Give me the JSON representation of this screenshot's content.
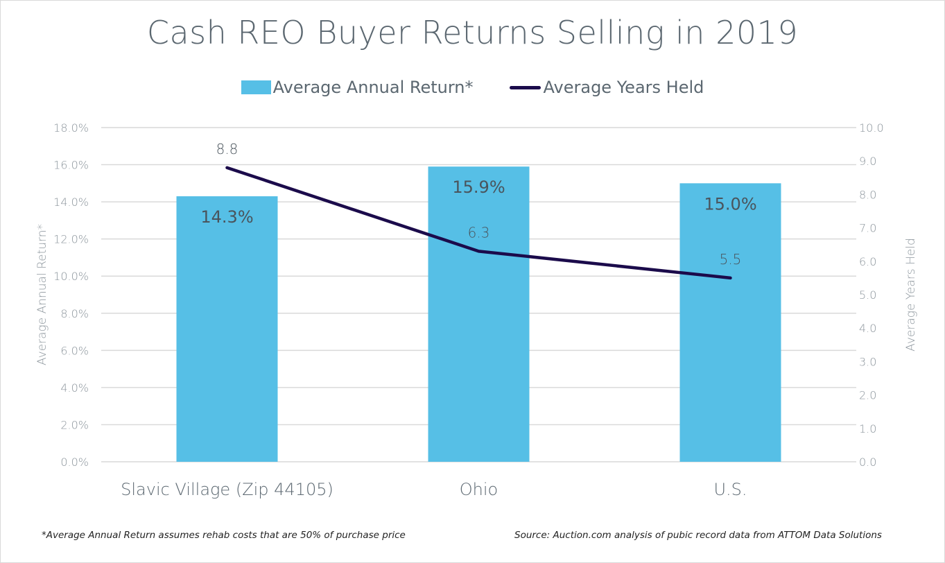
{
  "chart_data": {
    "type": "bar",
    "title": "Cash REO Buyer Returns Selling in 2019",
    "categories": [
      "Slavic Village (Zip 44105)",
      "Ohio",
      "U.S."
    ],
    "series": [
      {
        "name": "Average Annual Return*",
        "type": "bar",
        "axis": "left",
        "color": "#56bfe6",
        "values": [
          14.3,
          15.9,
          15.0
        ],
        "labels": [
          "14.3%",
          "15.9%",
          "15.0%"
        ]
      },
      {
        "name": "Average Years Held",
        "type": "line",
        "axis": "right",
        "color": "#1b0b4b",
        "values": [
          8.8,
          6.3,
          5.5
        ],
        "labels": [
          "8.8",
          "6.3",
          "5.5"
        ]
      }
    ],
    "ylabel": "Average Annual Return*",
    "y2label": "Average Years Held",
    "ylim": [
      0,
      18
    ],
    "y2lim": [
      0,
      10
    ],
    "yticks": [
      "0.0%",
      "2.0%",
      "4.0%",
      "6.0%",
      "8.0%",
      "10.0%",
      "12.0%",
      "14.0%",
      "16.0%",
      "18.0%"
    ],
    "y2ticks": [
      "0.0",
      "1.0",
      "2.0",
      "3.0",
      "4.0",
      "5.0",
      "6.0",
      "7.0",
      "8.0",
      "9.0",
      "10.0"
    ],
    "grid": true,
    "legend_position": "top-center"
  },
  "footnotes": {
    "left": "*Average Annual Return assumes rehab costs that are 50% of purchase price",
    "right": "Source: Auction.com analysis of pubic record data from ATTOM Data Solutions"
  },
  "colors": {
    "text": "#5b6770",
    "axis_text": "#8c959c",
    "grid": "#d9d9d9",
    "bar": "#56bfe6",
    "line": "#1b0b4b",
    "bar_label": "#4a545c"
  }
}
